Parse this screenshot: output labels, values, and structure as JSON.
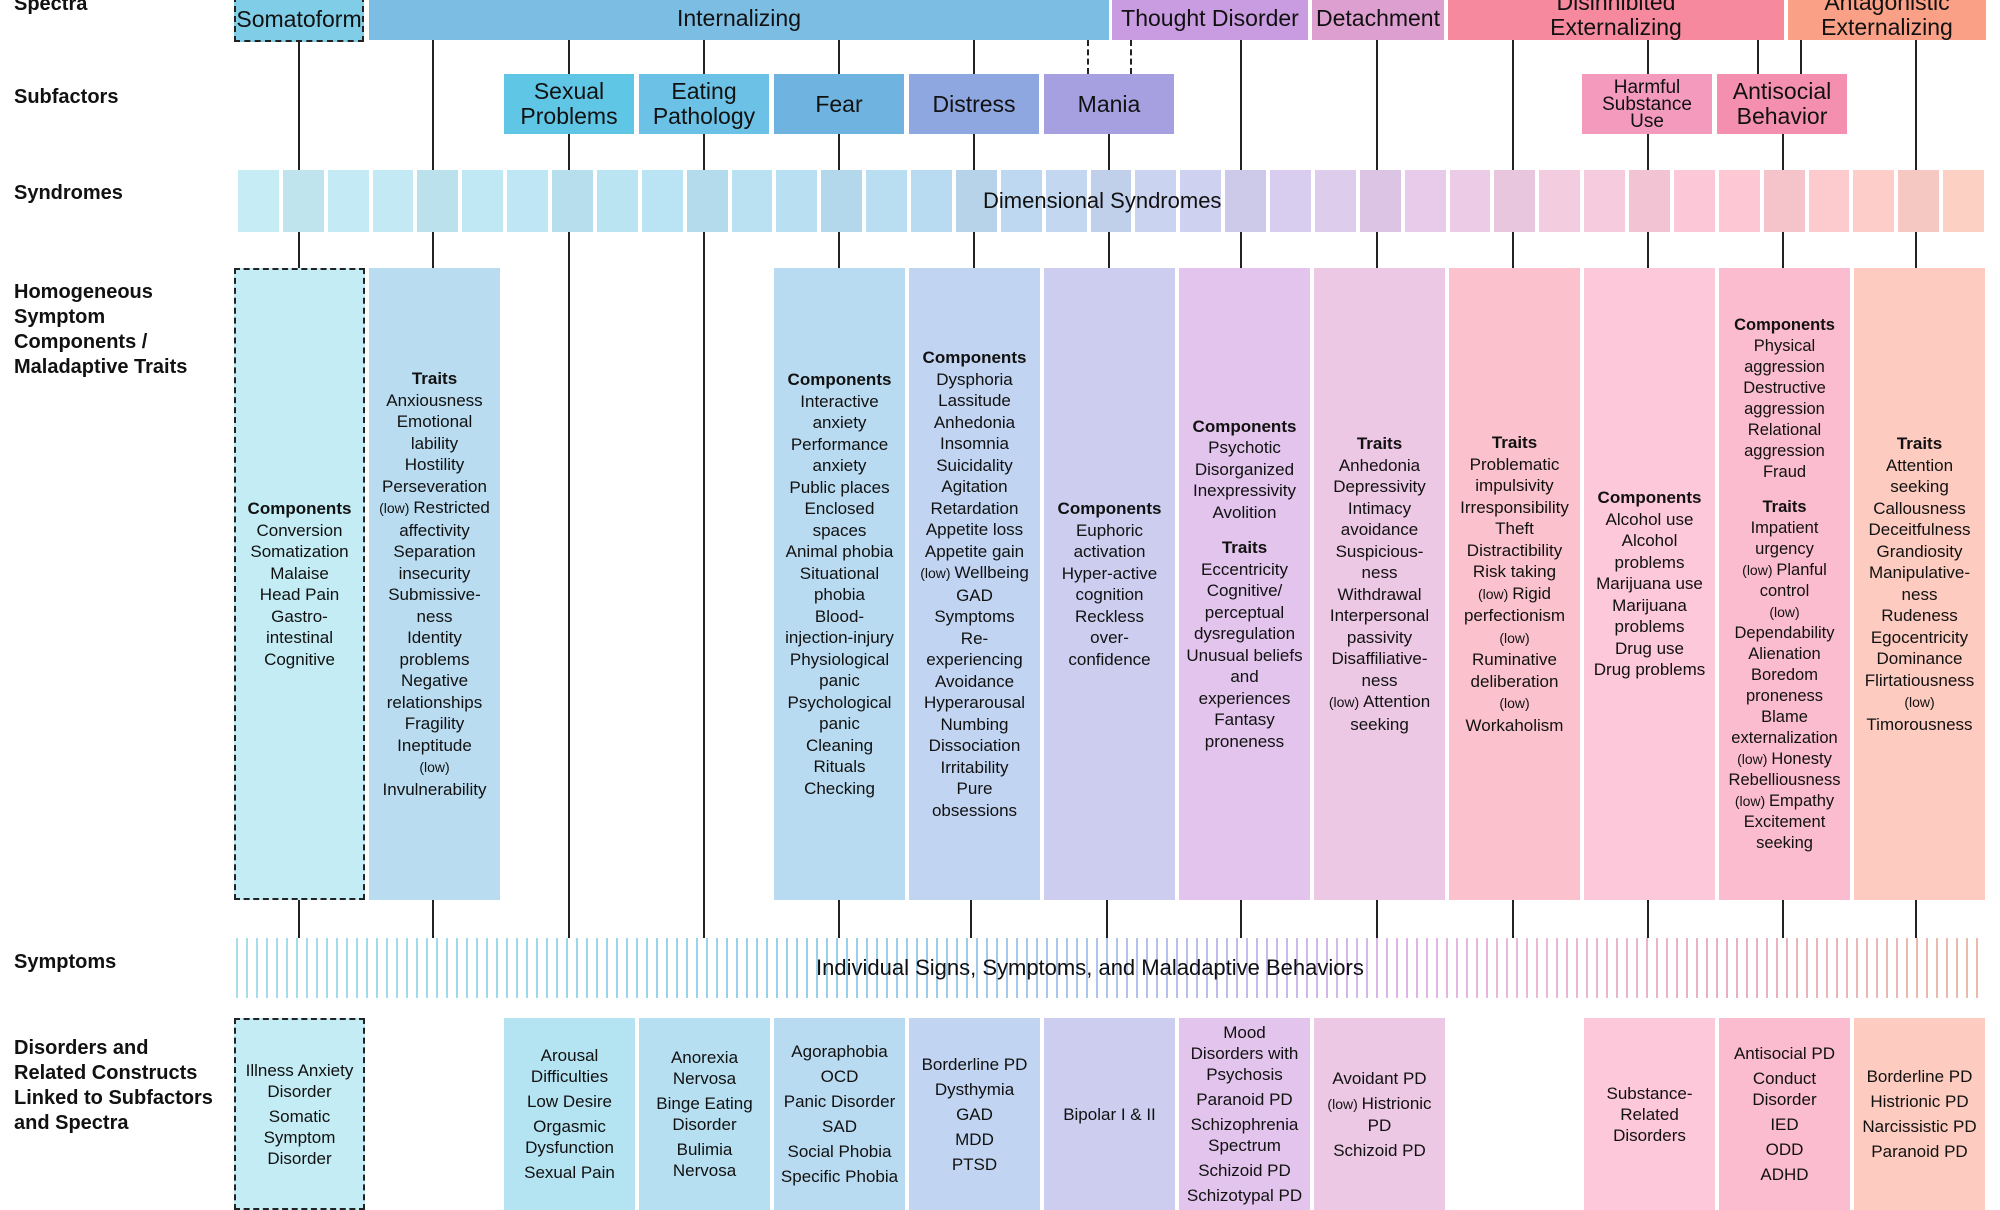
{
  "row_labels": {
    "spectra": "Spectra",
    "subfactors": "Subfactors",
    "syndromes": "Syndromes",
    "components": "Homogeneous\nSymptom\nComponents /\nMaladaptive Traits",
    "symptoms": "Symptoms",
    "disorders": "Disorders and\nRelated Constructs\nLinked to Subfactors\nand Spectra"
  },
  "spectra": [
    {
      "label": "Somatoform",
      "color": "#7fcde6"
    },
    {
      "label": "Internalizing",
      "color": "#7cbde3"
    },
    {
      "label": "Thought Disorder",
      "color": "#c99be0"
    },
    {
      "label": "Detachment",
      "color": "#dd9fd0"
    },
    {
      "label": "Disinhibited\nExternalizing",
      "color": "#f7899f"
    },
    {
      "label": "Antagonistic\nExternalizing",
      "color": "#f9a087"
    }
  ],
  "subfactors": [
    {
      "label": "Sexual\nProblems",
      "color": "#5fc6e6"
    },
    {
      "label": "Eating\nPathology",
      "color": "#6cc2e6"
    },
    {
      "label": "Fear",
      "color": "#6fb4e1"
    },
    {
      "label": "Distress",
      "color": "#8fa7e1"
    },
    {
      "label": "Mania",
      "color": "#a6a0e0"
    },
    {
      "label": "Harmful\nSubstance\nUse",
      "color": "#f49bbd"
    },
    {
      "label": "Antisocial\nBehavior",
      "color": "#f58fb0"
    }
  ],
  "syndromes_label": "Dimensional Syndromes",
  "symptoms_label": "Individual Signs, Symptoms, and Maladaptive Behaviors",
  "component_columns": [
    {
      "color": "#c3ecf4",
      "sections": [
        {
          "heading": "Components",
          "items": [
            "Conversion",
            "Somatization",
            "Malaise",
            "Head Pain",
            "Gastro-\nintestinal",
            "Cognitive"
          ]
        }
      ]
    },
    {
      "color": "#b9dcf1",
      "sections": [
        {
          "heading": "Traits",
          "items": [
            "Anxiousness",
            "Emotional\nlability",
            "Hostility",
            "Perseveration",
            "(low) Restricted\naffectivity",
            "Separation\ninsecurity",
            "Submissive-\nness",
            "Identity\nproblems",
            "Negative\nrelationships",
            "Fragility",
            "Ineptitude",
            "(low)\nInvulnerability"
          ]
        }
      ]
    },
    {
      "color": "#b9dbf1",
      "sections": [
        {
          "heading": "Components",
          "items": [
            "Interactive\nanxiety",
            "Performance\nanxiety",
            "Public places",
            "Enclosed\nspaces",
            "Animal phobia",
            "Situational\nphobia",
            "Blood-\ninjection-injury",
            "Physiological\npanic",
            "Psychological\npanic",
            "Cleaning",
            "Rituals",
            "Checking"
          ]
        }
      ]
    },
    {
      "color": "#c1d4f1",
      "sections": [
        {
          "heading": "Components",
          "items": [
            "Dysphoria",
            "Lassitude",
            "Anhedonia",
            "Insomnia",
            "Suicidality",
            "Agitation",
            "Retardation",
            "Appetite loss",
            "Appetite gain",
            "(low) Wellbeing",
            "GAD\nSymptoms",
            "Re-\nexperiencing",
            "Avoidance",
            "Hyperarousal",
            "Numbing",
            "Dissociation",
            "Irritability",
            "Pure\nobsessions"
          ]
        }
      ]
    },
    {
      "color": "#cdcdef",
      "sections": [
        {
          "heading": "Components",
          "items": [
            "Euphoric\nactivation",
            "Hyper-active\ncognition",
            "Reckless\nover-\nconfidence"
          ]
        }
      ]
    },
    {
      "color": "#e2c4ec",
      "sections": [
        {
          "heading": "Components",
          "items": [
            "Psychotic",
            "Disorganized",
            "Inexpressivity",
            "Avolition"
          ]
        },
        {
          "heading": "Traits",
          "items": [
            "Eccentricity",
            "Cognitive/\nperceptual\ndysregulation",
            "Unusual beliefs\nand\nexperiences",
            "Fantasy\nproneness"
          ]
        }
      ]
    },
    {
      "color": "#ecc8e4",
      "sections": [
        {
          "heading": "Traits",
          "items": [
            "Anhedonia",
            "Depressivity",
            "Intimacy\navoidance",
            "Suspicious-\nness",
            "Withdrawal",
            "Interpersonal\npassivity",
            "Disaffiliative-\nness",
            "(low) Attention\nseeking"
          ]
        }
      ]
    },
    {
      "color": "#fbc2cd",
      "sections": [
        {
          "heading": "Traits",
          "items": [
            "Problematic\nimpulsivity",
            "Irresponsibility",
            "Theft",
            "Distractibility",
            "Risk taking",
            "(low) Rigid\nperfectionism",
            "(low)\nRuminative\ndeliberation",
            "(low)\nWorkaholism"
          ]
        }
      ]
    },
    {
      "color": "#fdc8d9",
      "sections": [
        {
          "heading": "Components",
          "items": [
            "Alcohol use",
            "Alcohol\nproblems",
            "Marijuana use",
            "Marijuana\nproblems",
            "Drug use",
            "Drug problems"
          ]
        }
      ]
    },
    {
      "color": "#fcbcd0",
      "sections": [
        {
          "heading": "Components",
          "items": [
            "Physical\naggression",
            "Destructive\naggression",
            "Relational\naggression",
            "Fraud"
          ]
        },
        {
          "heading": "Traits",
          "items": [
            "Impatient\nurgency",
            "(low) Planful\ncontrol",
            "(low)\nDependability",
            "Alienation",
            "Boredom\nproneness",
            "Blame\nexternalization",
            "(low) Honesty",
            "Rebelliousness",
            "(low) Empathy",
            "Excitement\nseeking"
          ]
        }
      ]
    },
    {
      "color": "#fdcbbf",
      "sections": [
        {
          "heading": "Traits",
          "items": [
            "Attention\nseeking",
            "Callousness",
            "Deceitfulness",
            "Grandiosity",
            "Manipulative-\nness",
            "Rudeness",
            "Egocentricity",
            "Dominance",
            "Flirtatiousness",
            "(low)\nTimorousness"
          ]
        }
      ]
    }
  ],
  "disorder_columns": [
    {
      "color": "#c3ecf4",
      "items": [
        "Illness Anxiety\nDisorder",
        "Somatic\nSymptom\nDisorder"
      ]
    },
    {
      "color": "#b4e3f2",
      "items": [
        "Arousal\nDifficulties",
        "Low Desire",
        "Orgasmic\nDysfunction",
        "Sexual Pain"
      ]
    },
    {
      "color": "#b6e0f2",
      "items": [
        "Anorexia\nNervosa",
        "Binge Eating\nDisorder",
        "Bulimia\nNervosa"
      ]
    },
    {
      "color": "#b9dbf1",
      "items": [
        "Agoraphobia",
        "OCD",
        "Panic Disorder",
        "SAD",
        "Social Phobia",
        "Specific Phobia"
      ]
    },
    {
      "color": "#c1d4f1",
      "items": [
        "Borderline PD",
        "Dysthymia",
        "GAD",
        "MDD",
        "PTSD"
      ]
    },
    {
      "color": "#cdcdef",
      "items": [
        "Bipolar I & II"
      ]
    },
    {
      "color": "#e2c4ec",
      "items": [
        "Mood\nDisorders with\nPsychosis",
        "Paranoid PD",
        "Schizophrenia\nSpectrum",
        "Schizoid PD",
        "Schizotypal PD"
      ]
    },
    {
      "color": "#ecc8e4",
      "items": [
        "Avoidant PD",
        "(low) Histrionic\nPD",
        "Schizoid PD"
      ]
    },
    {
      "color": "#fdc8d9",
      "items": [
        "Substance-\nRelated\nDisorders"
      ]
    },
    {
      "color": "#fcbcd0",
      "items": [
        "Antisocial PD",
        "Conduct\nDisorder",
        "IED",
        "ODD",
        "ADHD"
      ]
    },
    {
      "color": "#fdcbbf",
      "items": [
        "Borderline PD",
        "Histrionic PD",
        "Narcissistic PD",
        "Paranoid PD"
      ]
    }
  ]
}
